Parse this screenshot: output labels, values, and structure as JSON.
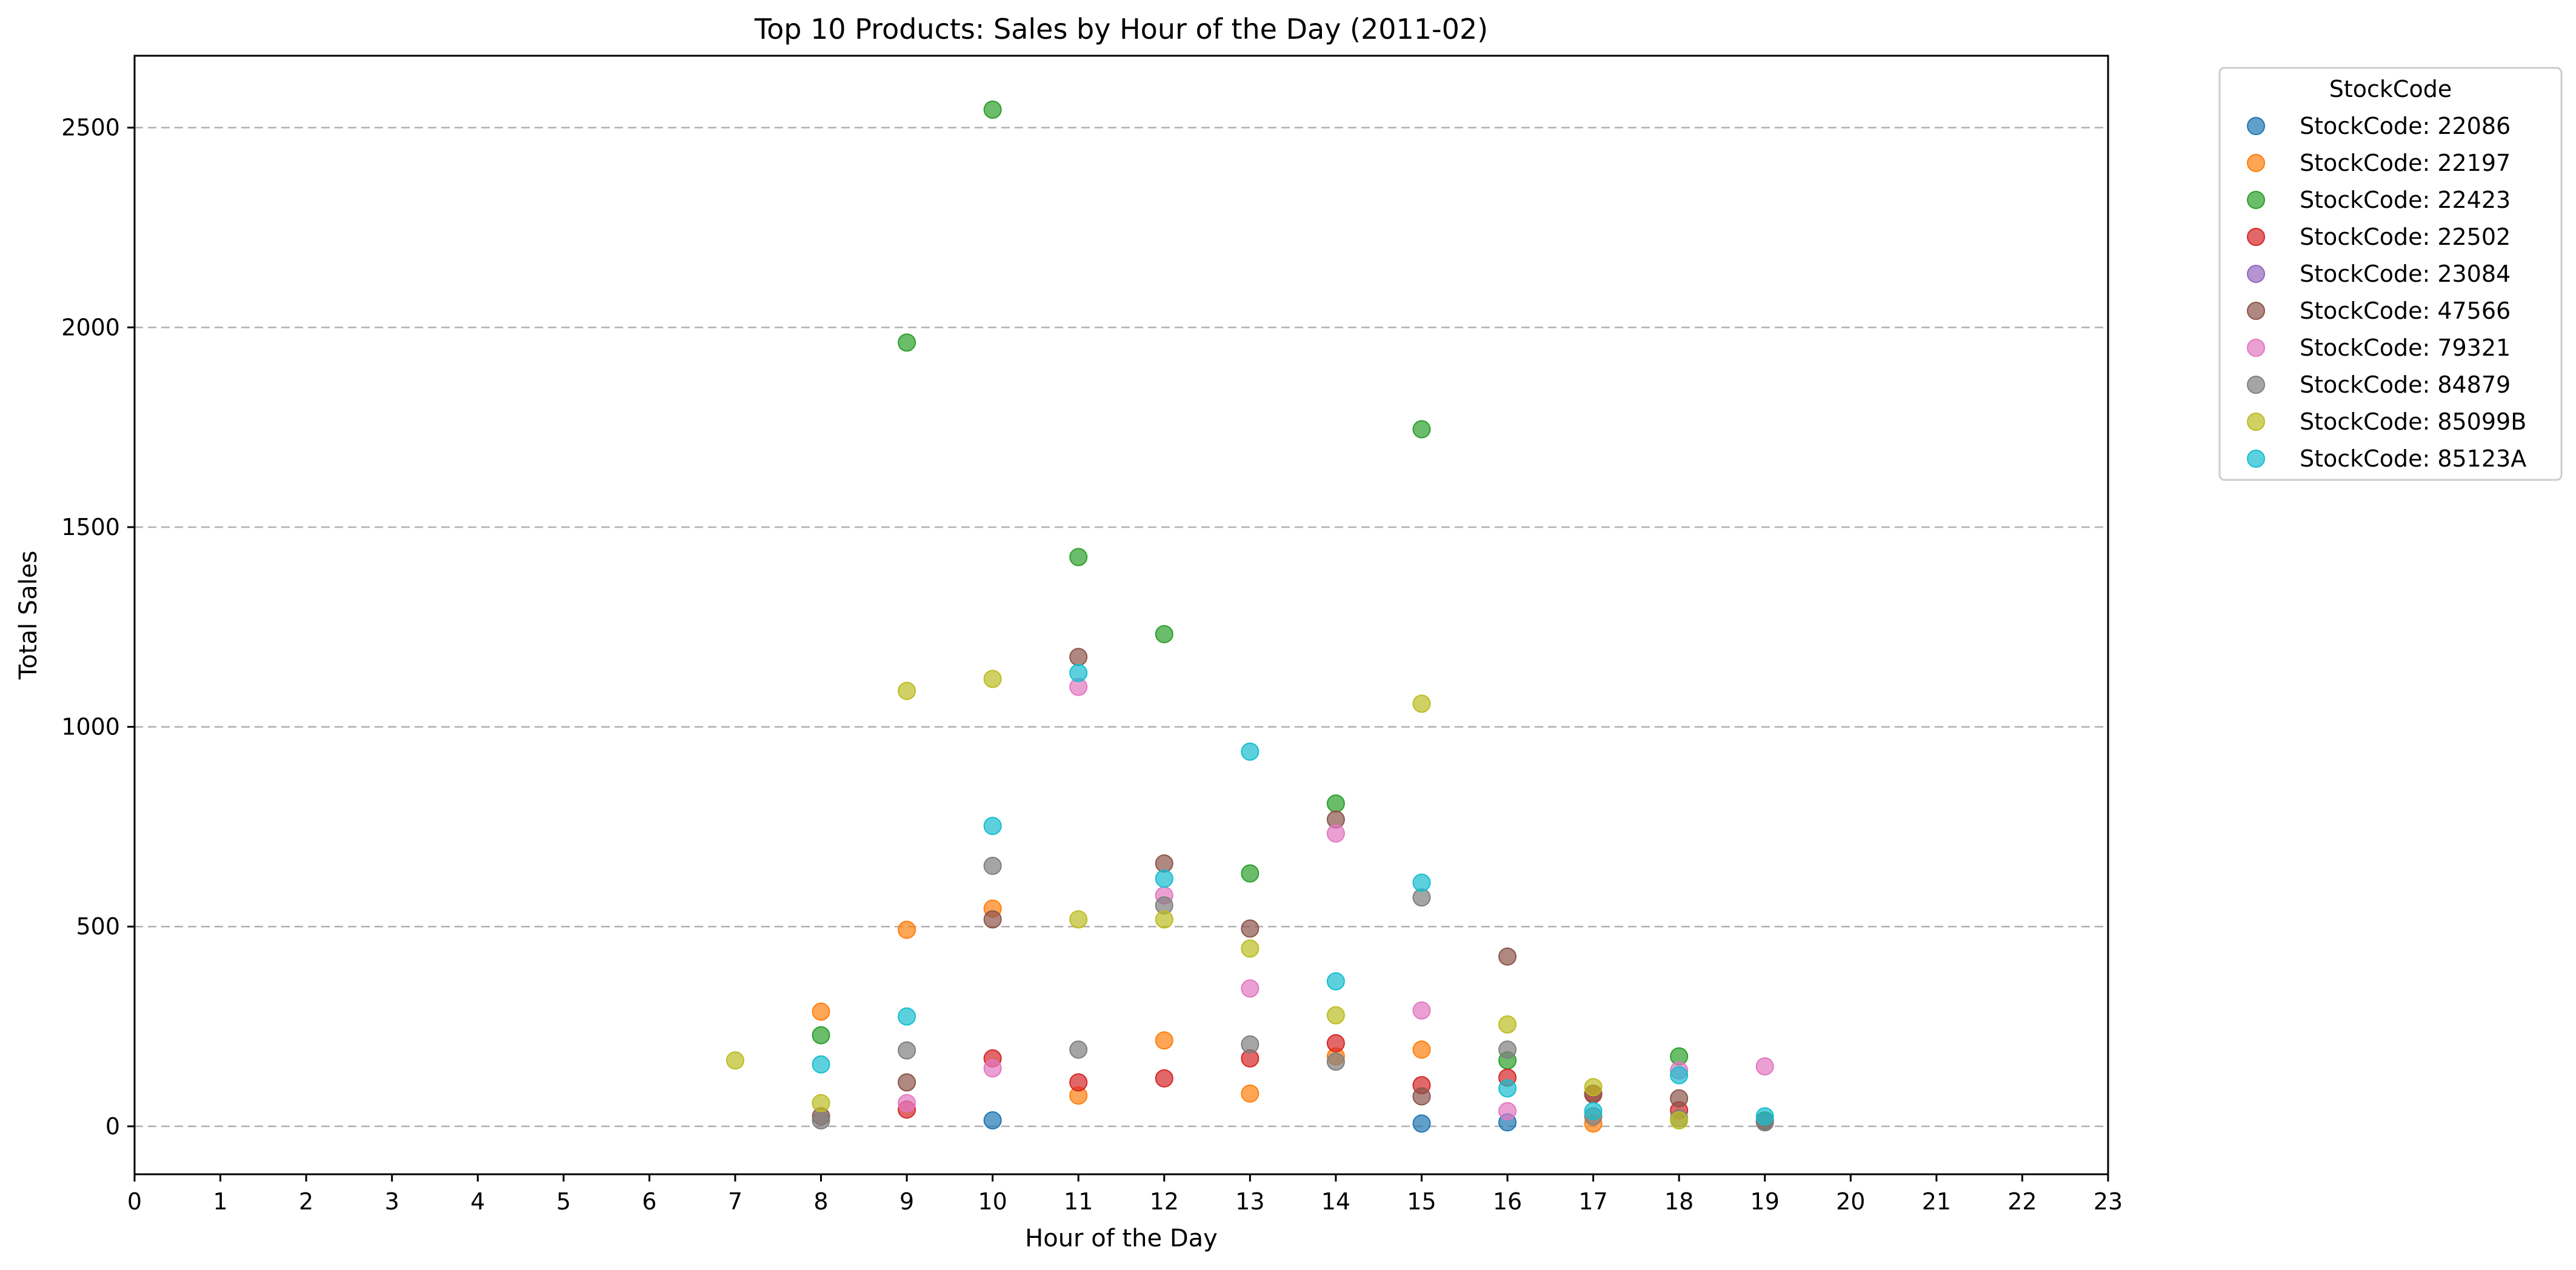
{
  "chart_data": {
    "type": "scatter",
    "title": "Top 10 Products: Sales by Hour of the Day (2011-02)",
    "xlabel": "Hour of the Day",
    "ylabel": "Total Sales",
    "xlim": [
      0,
      23
    ],
    "ylim": [
      -120,
      2680
    ],
    "xticks": [
      0,
      1,
      2,
      3,
      4,
      5,
      6,
      7,
      8,
      9,
      10,
      11,
      12,
      13,
      14,
      15,
      16,
      17,
      18,
      19,
      20,
      21,
      22,
      23
    ],
    "yticks": [
      0,
      500,
      1000,
      1500,
      2000,
      2500
    ],
    "grid": "horizontal dashed",
    "legend": {
      "title": "StockCode",
      "placement": "outside top-right"
    },
    "series": [
      {
        "name": "StockCode: 22086",
        "color": "#1f77b4",
        "points": [
          [
            10,
            15
          ],
          [
            15,
            7
          ],
          [
            16,
            10
          ]
        ]
      },
      {
        "name": "StockCode: 22197",
        "color": "#ff7f0e",
        "points": [
          [
            8,
            287
          ],
          [
            9,
            492
          ],
          [
            10,
            545
          ],
          [
            11,
            77
          ],
          [
            12,
            215
          ],
          [
            13,
            82
          ],
          [
            14,
            175
          ],
          [
            15,
            192
          ],
          [
            17,
            7
          ]
        ]
      },
      {
        "name": "StockCode: 22423",
        "color": "#2ca02c",
        "points": [
          [
            8,
            228
          ],
          [
            9,
            1962
          ],
          [
            10,
            2545
          ],
          [
            11,
            1425
          ],
          [
            12,
            1232
          ],
          [
            13,
            633
          ],
          [
            14,
            808
          ],
          [
            15,
            1745
          ],
          [
            16,
            165
          ],
          [
            18,
            175
          ],
          [
            19,
            15
          ]
        ]
      },
      {
        "name": "StockCode: 22502",
        "color": "#d62728",
        "points": [
          [
            9,
            42
          ],
          [
            10,
            170
          ],
          [
            11,
            110
          ],
          [
            12,
            120
          ],
          [
            13,
            170
          ],
          [
            14,
            208
          ],
          [
            15,
            103
          ],
          [
            16,
            122
          ],
          [
            17,
            80
          ],
          [
            18,
            40
          ]
        ]
      },
      {
        "name": "StockCode: 23084",
        "color": "#9467bd",
        "points": []
      },
      {
        "name": "StockCode: 47566",
        "color": "#8c564b",
        "points": [
          [
            8,
            25
          ],
          [
            9,
            110
          ],
          [
            10,
            518
          ],
          [
            11,
            1175
          ],
          [
            12,
            658
          ],
          [
            13,
            495
          ],
          [
            14,
            768
          ],
          [
            15,
            75
          ],
          [
            16,
            425
          ],
          [
            17,
            82
          ],
          [
            18,
            70
          ],
          [
            19,
            12
          ]
        ]
      },
      {
        "name": "StockCode: 79321",
        "color": "#e377c2",
        "points": [
          [
            9,
            58
          ],
          [
            10,
            145
          ],
          [
            11,
            1100
          ],
          [
            12,
            578
          ],
          [
            13,
            345
          ],
          [
            14,
            733
          ],
          [
            15,
            290
          ],
          [
            16,
            38
          ],
          [
            18,
            140
          ],
          [
            19,
            150
          ]
        ]
      },
      {
        "name": "StockCode: 84879",
        "color": "#7f7f7f",
        "points": [
          [
            8,
            15
          ],
          [
            9,
            190
          ],
          [
            10,
            652
          ],
          [
            11,
            192
          ],
          [
            12,
            553
          ],
          [
            13,
            205
          ],
          [
            14,
            162
          ],
          [
            15,
            573
          ],
          [
            16,
            192
          ],
          [
            17,
            25
          ],
          [
            18,
            20
          ],
          [
            19,
            10
          ]
        ]
      },
      {
        "name": "StockCode: 85099B",
        "color": "#bcbd22",
        "points": [
          [
            7,
            165
          ],
          [
            8,
            58
          ],
          [
            9,
            1090
          ],
          [
            10,
            1120
          ],
          [
            11,
            518
          ],
          [
            12,
            518
          ],
          [
            13,
            445
          ],
          [
            14,
            278
          ],
          [
            15,
            1058
          ],
          [
            16,
            255
          ],
          [
            17,
            98
          ],
          [
            18,
            15
          ]
        ]
      },
      {
        "name": "StockCode: 85123A",
        "color": "#17becf",
        "points": [
          [
            8,
            155
          ],
          [
            9,
            275
          ],
          [
            10,
            752
          ],
          [
            11,
            1135
          ],
          [
            12,
            620
          ],
          [
            13,
            938
          ],
          [
            14,
            363
          ],
          [
            15,
            610
          ],
          [
            16,
            95
          ],
          [
            17,
            38
          ],
          [
            18,
            128
          ],
          [
            19,
            25
          ]
        ]
      }
    ]
  }
}
